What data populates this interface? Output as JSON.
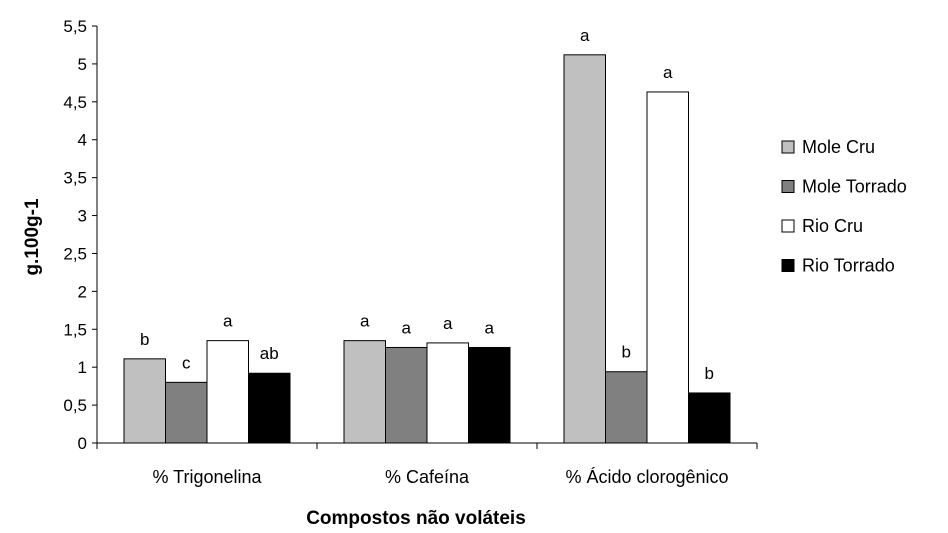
{
  "chart_data": {
    "type": "bar",
    "title": "",
    "xlabel": "Compostos não voláteis",
    "ylabel": "g.100g-1",
    "ylim": [
      0,
      5.5
    ],
    "yticks": [
      "0",
      "0,5",
      "1",
      "1,5",
      "2",
      "2,5",
      "3",
      "3,5",
      "4",
      "4,5",
      "5",
      "5,5"
    ],
    "grid": false,
    "legend_position": "right",
    "categories": [
      "% Trigonelina",
      "% Cafeína",
      "% Ácido clorogênico"
    ],
    "series": [
      {
        "name": "Mole Cru",
        "color": "#c0c0c0",
        "values": [
          1.11,
          1.35,
          5.12
        ],
        "labels": [
          "b",
          "a",
          "a"
        ]
      },
      {
        "name": "Mole Torrado",
        "color": "#808080",
        "values": [
          0.8,
          1.26,
          0.94
        ],
        "labels": [
          "c",
          "a",
          "b"
        ]
      },
      {
        "name": "Rio Cru",
        "color": "#ffffff",
        "values": [
          1.35,
          1.32,
          4.63
        ],
        "labels": [
          "a",
          "a",
          "a"
        ]
      },
      {
        "name": "Rio Torrado",
        "color": "#000000",
        "values": [
          0.92,
          1.26,
          0.66
        ],
        "labels": [
          "ab",
          "a",
          "b"
        ]
      }
    ]
  }
}
